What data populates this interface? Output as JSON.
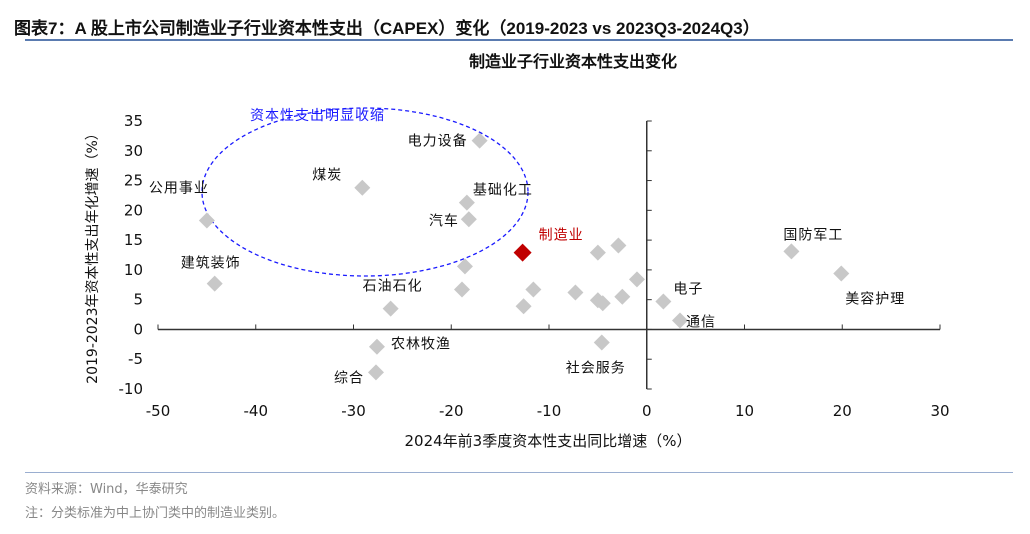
{
  "figure_title": "图表7：A 股上市公司制造业子行业资本性支出（CAPEX）变化（2019-2023 vs 2023Q3-2024Q3）",
  "source": "资料来源：Wind，华泰研究",
  "footnote": "注：分类标准为中上协门类中的制造业类别。",
  "chart_data": {
    "type": "scatter",
    "title": "制造业子行业资本性支出变化",
    "xlabel": "2024年前3季度资本性支出同比增速（%）",
    "ylabel": "2019-2023年资本性支出年化增速（%）",
    "xlim": [
      -50,
      30
    ],
    "ylim": [
      -10,
      35
    ],
    "xticks": [
      -50,
      -40,
      -30,
      -20,
      -10,
      0,
      10,
      20,
      30
    ],
    "yticks": [
      -10,
      -5,
      0,
      5,
      10,
      15,
      20,
      25,
      30,
      35
    ],
    "grid": false,
    "colors": {
      "point": "#c8c8c8",
      "highlight": "#c00000",
      "ellipse": "#1a1aff",
      "highlight_label": "#c00000"
    },
    "annotation": "资本性支出明显收缩",
    "points": [
      {
        "label": "电力设备",
        "x": -17.1,
        "y": 31.7
      },
      {
        "label": "煤炭",
        "x": -29.1,
        "y": 23.8
      },
      {
        "label": "公用事业",
        "x": -45.0,
        "y": 18.3
      },
      {
        "label": "基础化工",
        "x": -18.4,
        "y": 21.3
      },
      {
        "label": "汽车",
        "x": -18.2,
        "y": 18.5
      },
      {
        "label": "制造业",
        "x": -12.7,
        "y": 12.9,
        "highlight": true
      },
      {
        "label": "建筑装饰",
        "x": -44.2,
        "y": 7.7
      },
      {
        "label": "",
        "x": -18.6,
        "y": 10.6
      },
      {
        "label": "石油石化",
        "x": -26.2,
        "y": 3.5
      },
      {
        "label": "",
        "x": -18.9,
        "y": 6.7
      },
      {
        "label": "",
        "x": -12.6,
        "y": 3.9
      },
      {
        "label": "",
        "x": -11.6,
        "y": 6.7
      },
      {
        "label": "",
        "x": -7.3,
        "y": 6.2
      },
      {
        "label": "",
        "x": -5.0,
        "y": 12.9
      },
      {
        "label": "",
        "x": -2.9,
        "y": 14.1
      },
      {
        "label": "",
        "x": -5.0,
        "y": 4.9
      },
      {
        "label": "",
        "x": -4.5,
        "y": 4.4
      },
      {
        "label": "",
        "x": -2.5,
        "y": 5.5
      },
      {
        "label": "",
        "x": -1.0,
        "y": 8.4
      },
      {
        "label": "电子",
        "x": 1.7,
        "y": 4.7
      },
      {
        "label": "通信",
        "x": 3.4,
        "y": 1.5
      },
      {
        "label": "国防军工",
        "x": 14.8,
        "y": 13.1
      },
      {
        "label": "美容护理",
        "x": 19.9,
        "y": 9.4
      },
      {
        "label": "农林牧渔",
        "x": -27.6,
        "y": -2.9
      },
      {
        "label": "综合",
        "x": -27.7,
        "y": -7.2
      },
      {
        "label": "社会服务",
        "x": -4.6,
        "y": -2.2
      }
    ]
  }
}
